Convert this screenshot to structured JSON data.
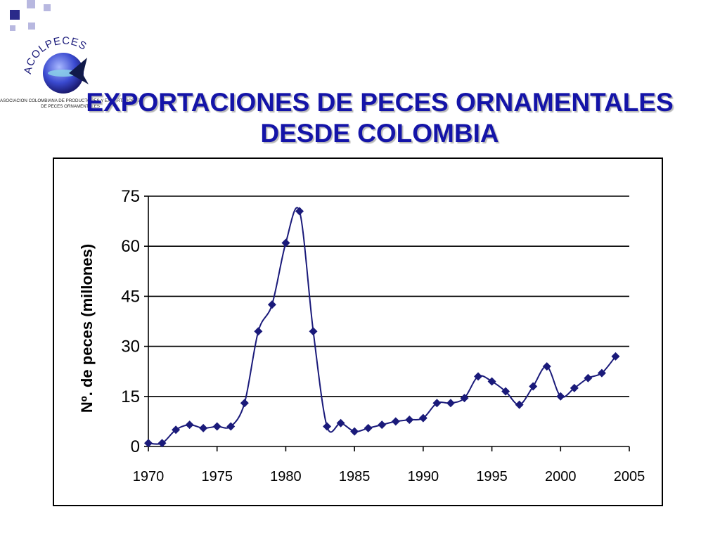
{
  "slide": {
    "title_line1": "EXPORTACIONES DE PECES ORNAMENTALES",
    "title_line2": "DESDE COLOMBIA",
    "logo_text": "ACOLPECES",
    "logo_subtitle_line1": "ASOCIACION COLOMBIANA DE PRODUCTORES Y EXPORTADORES",
    "logo_subtitle_line2": "DE PECES ORNAMENTALES"
  },
  "colors": {
    "title": "#1414a8",
    "series": "#1a1a7a",
    "corner_dark": "#2a2a8a",
    "corner_light": "#b8b8e0"
  },
  "chart_data": {
    "type": "line",
    "title": "",
    "xlabel": "",
    "ylabel": "Nº. de peces (millones)",
    "xlim": [
      1970,
      2005
    ],
    "ylim": [
      0,
      75
    ],
    "xticks": [
      1970,
      1975,
      1980,
      1985,
      1990,
      1995,
      2000,
      2005
    ],
    "yticks": [
      0,
      15,
      30,
      45,
      60,
      75
    ],
    "grid": "horizontal",
    "marker": "diamond",
    "smooth": true,
    "series": [
      {
        "x": [
          1970,
          1971,
          1972,
          1973,
          1974,
          1975,
          1976,
          1977,
          1978,
          1979,
          1980,
          1981,
          1982,
          1983,
          1984,
          1985,
          1986,
          1987,
          1988,
          1989,
          1990,
          1991,
          1992,
          1993,
          1994,
          1995,
          1996,
          1997,
          1998,
          1999,
          2000,
          2001,
          2002,
          2003,
          2004
        ],
        "values": [
          1,
          1,
          5,
          6.5,
          5.5,
          6,
          6,
          13,
          34.5,
          42.5,
          61,
          70.5,
          34.5,
          6,
          7,
          4.5,
          5.5,
          6.5,
          7.5,
          8,
          8.5,
          13,
          13,
          14.5,
          21,
          19.5,
          16.5,
          12.5,
          18,
          24,
          15,
          17.5,
          20.5,
          22,
          27
        ]
      }
    ]
  }
}
